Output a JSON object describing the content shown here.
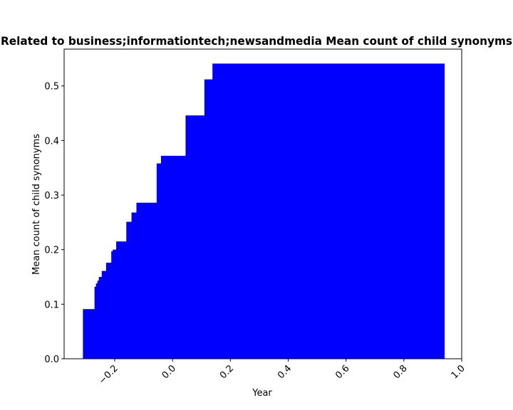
{
  "chart_data": {
    "type": "area",
    "title": "Related to business;informationtech;newsandmedia Mean count of child synonyms",
    "xlabel": "Year",
    "ylabel": "Mean count of child synonyms",
    "xlim": [
      -0.375,
      1.0
    ],
    "ylim": [
      0.0,
      0.5675
    ],
    "grid": false,
    "legend": "none",
    "color": "#0000ff",
    "x_ticks": [
      -0.2,
      0.0,
      0.2,
      0.4,
      0.6,
      0.8,
      1.0
    ],
    "x_tick_labels": [
      "−0.2",
      "0.0",
      "0.2",
      "0.4",
      "0.6",
      "0.8",
      "1.0"
    ],
    "y_ticks": [
      0.0,
      0.1,
      0.2,
      0.3,
      0.4,
      0.5
    ],
    "y_tick_labels": [
      "0.0",
      "0.1",
      "0.2",
      "0.3",
      "0.4",
      "0.5"
    ],
    "steps": [
      {
        "x_start": -0.31,
        "x_end": -0.27,
        "y": 0.091
      },
      {
        "x_start": -0.27,
        "x_end": -0.265,
        "y": 0.132
      },
      {
        "x_start": -0.265,
        "x_end": -0.26,
        "y": 0.138
      },
      {
        "x_start": -0.26,
        "x_end": -0.255,
        "y": 0.143
      },
      {
        "x_start": -0.255,
        "x_end": -0.245,
        "y": 0.15
      },
      {
        "x_start": -0.245,
        "x_end": -0.23,
        "y": 0.161
      },
      {
        "x_start": -0.23,
        "x_end": -0.212,
        "y": 0.176
      },
      {
        "x_start": -0.212,
        "x_end": -0.207,
        "y": 0.197
      },
      {
        "x_start": -0.207,
        "x_end": -0.195,
        "y": 0.2
      },
      {
        "x_start": -0.195,
        "x_end": -0.16,
        "y": 0.215
      },
      {
        "x_start": -0.16,
        "x_end": -0.142,
        "y": 0.251
      },
      {
        "x_start": -0.142,
        "x_end": -0.125,
        "y": 0.268
      },
      {
        "x_start": -0.125,
        "x_end": -0.055,
        "y": 0.286
      },
      {
        "x_start": -0.055,
        "x_end": -0.04,
        "y": 0.358
      },
      {
        "x_start": -0.04,
        "x_end": 0.045,
        "y": 0.372
      },
      {
        "x_start": 0.045,
        "x_end": 0.11,
        "y": 0.446
      },
      {
        "x_start": 0.11,
        "x_end": 0.138,
        "y": 0.512
      },
      {
        "x_start": 0.138,
        "x_end": 0.94,
        "y": 0.541
      }
    ]
  }
}
